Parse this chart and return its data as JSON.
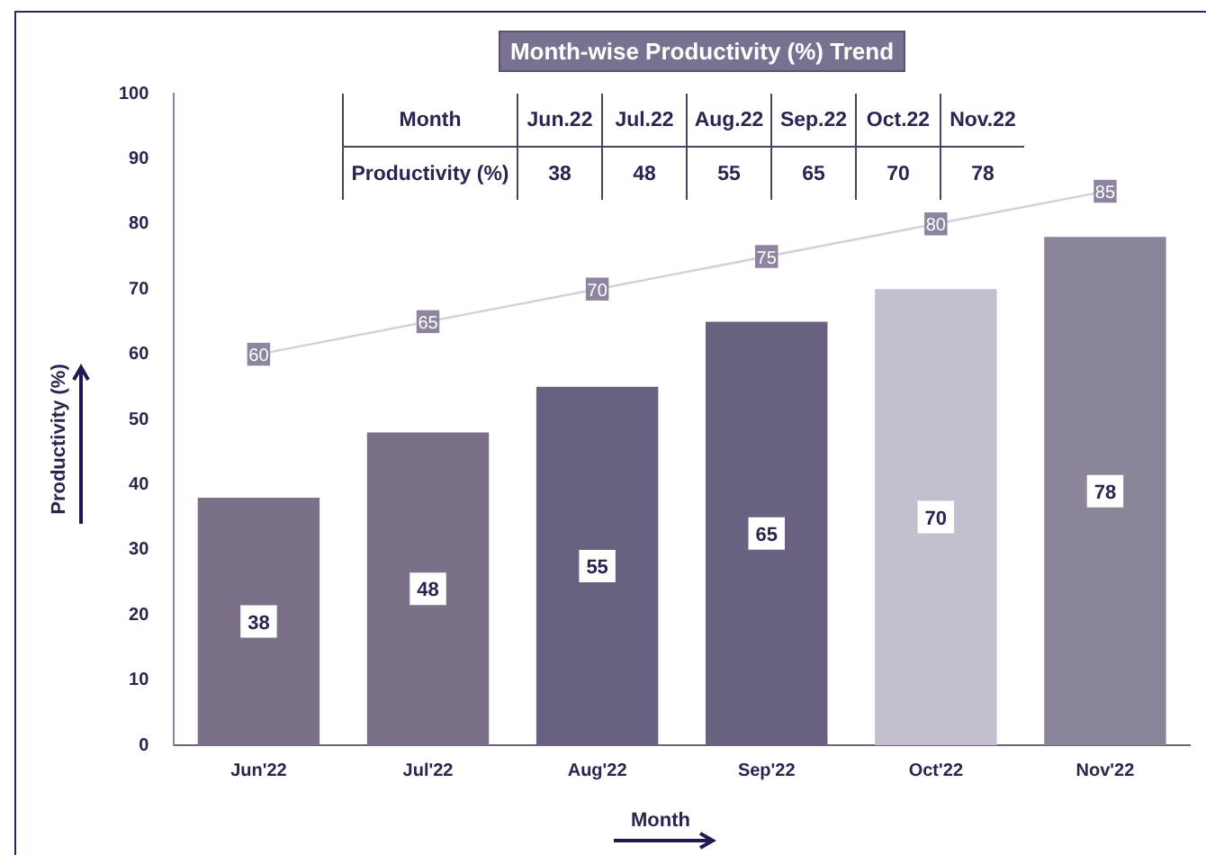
{
  "chart_data": {
    "type": "bar",
    "title": "Month-wise Productivity (%) Trend",
    "xlabel": "Month",
    "ylabel": "Productivity (%)",
    "categories": [
      "Jun'22",
      "Jul'22",
      "Aug'22",
      "Sep'22",
      "Oct'22",
      "Nov'22"
    ],
    "series": [
      {
        "colors": [
          "#7a7088",
          "#7a7088",
          "#6a6080",
          "#6a6080",
          "#c4bece",
          "#8c8498"
        ],
        "values": [
          38,
          48,
          55,
          65,
          70,
          78
        ]
      },
      {
        "type": "line",
        "color": "#d4cddb",
        "marker": "square",
        "values": [
          60,
          65,
          70,
          75,
          80,
          85
        ]
      }
    ],
    "ylim": [
      0,
      100
    ],
    "yticks": [
      0,
      10,
      20,
      30,
      40,
      50,
      60,
      70,
      80,
      90,
      100
    ],
    "grid": false,
    "legend": false,
    "data_labels": true,
    "line_style": "solid",
    "annotations": [
      "Month",
      "Productivity (%)",
      "Jun.22",
      "Jul.22",
      "Aug.22",
      "Sep.22",
      "Oct.22",
      "Nov.22",
      "38",
      "48",
      "55",
      "65",
      "70",
      "78"
    ]
  }
}
